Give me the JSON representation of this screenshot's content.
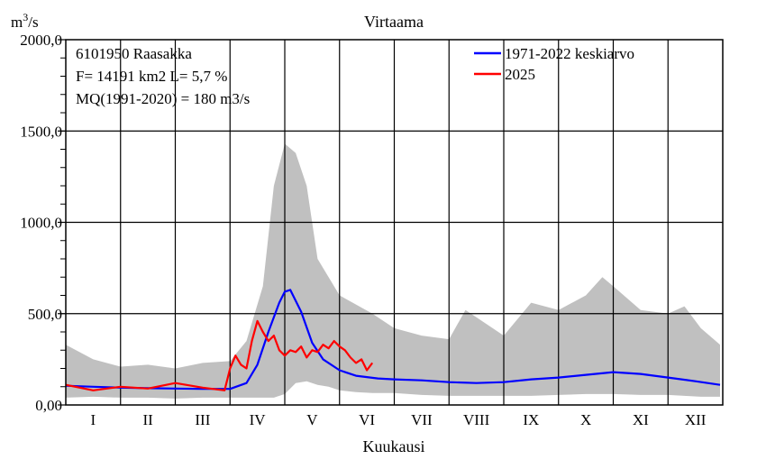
{
  "chart_data": {
    "type": "line",
    "title": "Virtaama",
    "ylabel_base": "m",
    "ylabel_sup": "3",
    "ylabel_tail": "/s",
    "xlabel": "Kuukausi",
    "ylim": [
      0,
      2000
    ],
    "yticks": [
      "0,00",
      "500,0",
      "1000,0",
      "1500,0",
      "2000,0"
    ],
    "ytick_values": [
      0,
      500,
      1000,
      1500,
      2000
    ],
    "months": [
      "I",
      "II",
      "III",
      "IV",
      "V",
      "VI",
      "VII",
      "VIII",
      "IX",
      "X",
      "XI",
      "XII"
    ],
    "grid": true,
    "legend_placement": "top-right",
    "info": [
      "6101950 Raasakka",
      "F=  14191 km2 L=  5,7 %",
      "MQ(1991-2020) = 180 m3/s"
    ],
    "series": [
      {
        "name": "1971-2022 keskiarvo",
        "color": "#0000ff",
        "x": [
          0,
          0.5,
          1,
          1.5,
          2,
          2.5,
          3,
          3.3,
          3.5,
          3.7,
          3.9,
          4.0,
          4.1,
          4.3,
          4.5,
          4.7,
          5.0,
          5.3,
          5.7,
          6.0,
          6.5,
          7.0,
          7.5,
          8.0,
          8.5,
          9.0,
          9.5,
          10.0,
          10.5,
          11.0,
          11.5,
          11.95
        ],
        "y": [
          105,
          100,
          95,
          92,
          90,
          88,
          88,
          120,
          220,
          400,
          560,
          620,
          630,
          510,
          340,
          250,
          190,
          160,
          145,
          140,
          135,
          125,
          120,
          125,
          140,
          150,
          165,
          180,
          170,
          150,
          130,
          110
        ]
      },
      {
        "name": "2025",
        "color": "#ff0000",
        "x": [
          0,
          0.5,
          1,
          1.5,
          2,
          2.5,
          2.9,
          3.0,
          3.1,
          3.2,
          3.3,
          3.4,
          3.5,
          3.6,
          3.7,
          3.8,
          3.9,
          4.0,
          4.1,
          4.2,
          4.3,
          4.4,
          4.5,
          4.6,
          4.7,
          4.8,
          4.9,
          5.0,
          5.1,
          5.2,
          5.3,
          5.4,
          5.5,
          5.6
        ],
        "y": [
          110,
          80,
          100,
          90,
          120,
          95,
          80,
          200,
          270,
          220,
          200,
          350,
          460,
          400,
          350,
          380,
          300,
          270,
          300,
          290,
          320,
          260,
          300,
          290,
          330,
          310,
          350,
          320,
          300,
          260,
          230,
          250,
          190,
          230
        ]
      }
    ],
    "range_band": {
      "color": "#c0c0c0",
      "x": [
        0,
        0.5,
        1,
        1.5,
        2,
        2.5,
        3,
        3.3,
        3.6,
        3.8,
        4.0,
        4.2,
        4.4,
        4.6,
        4.8,
        5.0,
        5.3,
        5.6,
        6.0,
        6.5,
        7.0,
        7.3,
        7.5,
        8.0,
        8.5,
        9.0,
        9.5,
        9.8,
        10.0,
        10.5,
        11.0,
        11.3,
        11.6,
        11.95
      ],
      "max": [
        330,
        250,
        210,
        220,
        200,
        230,
        240,
        350,
        650,
        1200,
        1430,
        1380,
        1200,
        800,
        700,
        600,
        550,
        500,
        420,
        380,
        360,
        520,
        480,
        380,
        560,
        520,
        600,
        700,
        650,
        520,
        500,
        540,
        420,
        330
      ],
      "min": [
        40,
        45,
        40,
        40,
        35,
        40,
        40,
        40,
        40,
        40,
        60,
        120,
        130,
        110,
        100,
        80,
        70,
        65,
        65,
        55,
        50,
        50,
        50,
        50,
        50,
        55,
        60,
        60,
        60,
        55,
        55,
        50,
        45,
        45
      ]
    }
  }
}
